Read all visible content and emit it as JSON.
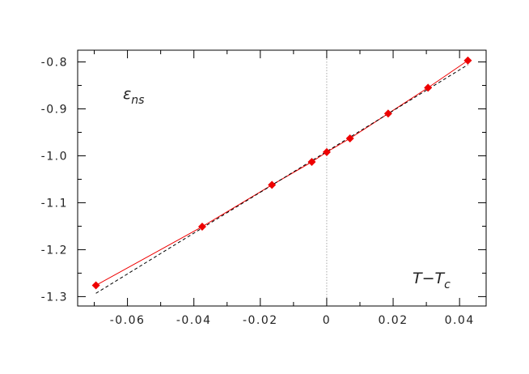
{
  "chart_data": {
    "type": "line",
    "title": "",
    "xlabel": "",
    "ylabel": "",
    "xlim": [
      -0.075,
      0.048
    ],
    "ylim": [
      -1.32,
      -0.775
    ],
    "x_ticks": [
      -0.06,
      -0.04,
      -0.02,
      0,
      0.02,
      0.04
    ],
    "x_tick_labels": [
      "-0.06",
      "-0.04",
      "-0.02",
      "0",
      "0.02",
      "0.04"
    ],
    "y_ticks": [
      -0.8,
      -0.9,
      -1.0,
      -1.1,
      -1.2,
      -1.3
    ],
    "y_tick_labels": [
      "-0.8",
      "-0.9",
      "-1.0",
      "-1.1",
      "-1.2",
      "-1.3"
    ],
    "grid": false,
    "vertical_reference_line": {
      "x": 0,
      "style": "dotted",
      "color": "#aaaaaa"
    },
    "annotations": {
      "y_symbol": "ε",
      "y_symbol_sub": "ns",
      "x_symbol_base": "T−T",
      "x_symbol_sub": "c"
    },
    "series": [
      {
        "kind": "markers",
        "marker": "diamond",
        "color": "#ee0000",
        "x": [
          -0.0695,
          -0.0375,
          -0.0165,
          -0.0045,
          0.0,
          0.007,
          0.0185,
          0.0305,
          0.0425
        ],
        "y": [
          -1.276,
          -1.151,
          -1.062,
          -1.013,
          -0.992,
          -0.963,
          -0.91,
          -0.855,
          -0.797
        ]
      },
      {
        "kind": "line",
        "style": "solid",
        "color": "#ee0000",
        "x": [
          -0.0695,
          -0.0375,
          -0.0165,
          -0.0045,
          0.0,
          0.007,
          0.0185,
          0.0305,
          0.0425
        ],
        "y": [
          -1.276,
          -1.151,
          -1.062,
          -1.013,
          -0.992,
          -0.963,
          -0.91,
          -0.855,
          -0.797
        ]
      },
      {
        "kind": "line",
        "style": "dashed",
        "color": "#000000",
        "x": [
          -0.0695,
          0.0425
        ],
        "y": [
          -1.293,
          -0.806
        ]
      }
    ]
  }
}
